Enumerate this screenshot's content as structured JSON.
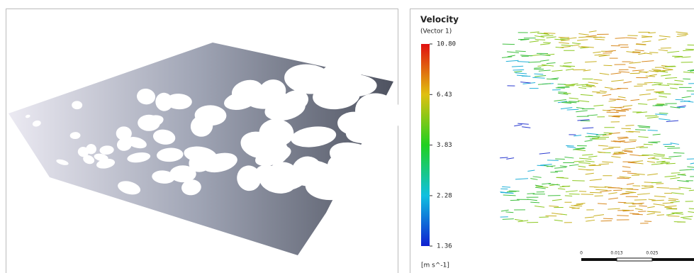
{
  "legend": {
    "title": "Velocity",
    "subtitle": "(Vector 1)",
    "scale": "log",
    "ticks": [
      {
        "value": 10.8,
        "label": "10.80"
      },
      6.43,
      3.83,
      2.28,
      1.36
    ],
    "unit": "[m s^-1]"
  },
  "scale_bar": {
    "labels": [
      "0",
      "0.013",
      "0.025"
    ]
  }
}
